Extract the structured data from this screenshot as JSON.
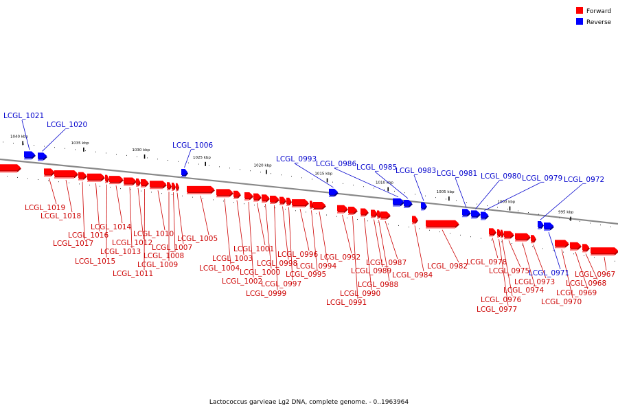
{
  "legend": {
    "forward": {
      "label": "Forward",
      "color": "#ff0000"
    },
    "reverse": {
      "label": "Reverse",
      "color": "#0000ff"
    }
  },
  "caption": "Lactococcus garvieae Lg2 DNA, complete genome. - 0..1963964",
  "kbp_ticks": [
    {
      "label": "1040 kbp",
      "kbp": 1040
    },
    {
      "label": "1035 kbp",
      "kbp": 1035
    },
    {
      "label": "1030 kbp",
      "kbp": 1030
    },
    {
      "label": "1025 kbp",
      "kbp": 1025
    },
    {
      "label": "1020 kbp",
      "kbp": 1020
    },
    {
      "label": "1015 kbp",
      "kbp": 1015
    },
    {
      "label": "1010 kbp",
      "kbp": 1010
    },
    {
      "label": "1005 kbp",
      "kbp": 1005
    },
    {
      "label": "1000 kbp",
      "kbp": 1000
    },
    {
      "label": "995 kbp",
      "kbp": 995
    }
  ],
  "genes": [
    {
      "id": "LCGL_1021",
      "strand": "reverse"
    },
    {
      "id": "LCGL_1020",
      "strand": "reverse"
    },
    {
      "id": "LCGL_1019",
      "strand": "forward"
    },
    {
      "id": "LCGL_1018",
      "strand": "forward"
    },
    {
      "id": "LCGL_1017",
      "strand": "forward"
    },
    {
      "id": "LCGL_1016",
      "strand": "forward"
    },
    {
      "id": "LCGL_1015",
      "strand": "forward"
    },
    {
      "id": "LCGL_1014",
      "strand": "forward"
    },
    {
      "id": "LCGL_1013",
      "strand": "forward"
    },
    {
      "id": "LCGL_1012",
      "strand": "forward"
    },
    {
      "id": "LCGL_1011",
      "strand": "forward"
    },
    {
      "id": "LCGL_1010",
      "strand": "forward"
    },
    {
      "id": "LCGL_1009",
      "strand": "forward"
    },
    {
      "id": "LCGL_1008",
      "strand": "forward"
    },
    {
      "id": "LCGL_1007",
      "strand": "forward"
    },
    {
      "id": "LCGL_1006",
      "strand": "reverse"
    },
    {
      "id": "LCGL_1005",
      "strand": "forward"
    },
    {
      "id": "LCGL_1004",
      "strand": "forward"
    },
    {
      "id": "LCGL_1003",
      "strand": "forward"
    },
    {
      "id": "LCGL_1002",
      "strand": "forward"
    },
    {
      "id": "LCGL_1001",
      "strand": "forward"
    },
    {
      "id": "LCGL_1000",
      "strand": "forward"
    },
    {
      "id": "LCGL_0999",
      "strand": "forward"
    },
    {
      "id": "LCGL_0998",
      "strand": "forward"
    },
    {
      "id": "LCGL_0997",
      "strand": "forward"
    },
    {
      "id": "LCGL_0996",
      "strand": "forward"
    },
    {
      "id": "LCGL_0995",
      "strand": "forward"
    },
    {
      "id": "LCGL_0994",
      "strand": "forward"
    },
    {
      "id": "LCGL_0993",
      "strand": "reverse"
    },
    {
      "id": "LCGL_0992",
      "strand": "forward"
    },
    {
      "id": "LCGL_0991",
      "strand": "forward"
    },
    {
      "id": "LCGL_0990",
      "strand": "forward"
    },
    {
      "id": "LCGL_0989",
      "strand": "forward"
    },
    {
      "id": "LCGL_0988",
      "strand": "forward"
    },
    {
      "id": "LCGL_0987",
      "strand": "forward"
    },
    {
      "id": "LCGL_0986",
      "strand": "reverse"
    },
    {
      "id": "LCGL_0985",
      "strand": "reverse"
    },
    {
      "id": "LCGL_0984",
      "strand": "forward"
    },
    {
      "id": "LCGL_0983",
      "strand": "reverse"
    },
    {
      "id": "LCGL_0982",
      "strand": "forward"
    },
    {
      "id": "LCGL_0981",
      "strand": "reverse"
    },
    {
      "id": "LCGL_0980",
      "strand": "reverse"
    },
    {
      "id": "LCGL_0979",
      "strand": "reverse"
    },
    {
      "id": "LCGL_0978",
      "strand": "forward"
    },
    {
      "id": "LCGL_0977",
      "strand": "forward"
    },
    {
      "id": "LCGL_0976",
      "strand": "forward"
    },
    {
      "id": "LCGL_0975",
      "strand": "forward"
    },
    {
      "id": "LCGL_0974",
      "strand": "forward"
    },
    {
      "id": "LCGL_0973",
      "strand": "forward"
    },
    {
      "id": "LCGL_0972",
      "strand": "reverse"
    },
    {
      "id": "LCGL_0971",
      "strand": "reverse"
    },
    {
      "id": "LCGL_0970",
      "strand": "forward"
    },
    {
      "id": "LCGL_0969",
      "strand": "forward"
    },
    {
      "id": "LCGL_0968",
      "strand": "forward"
    },
    {
      "id": "LCGL_0967",
      "strand": "forward"
    }
  ]
}
